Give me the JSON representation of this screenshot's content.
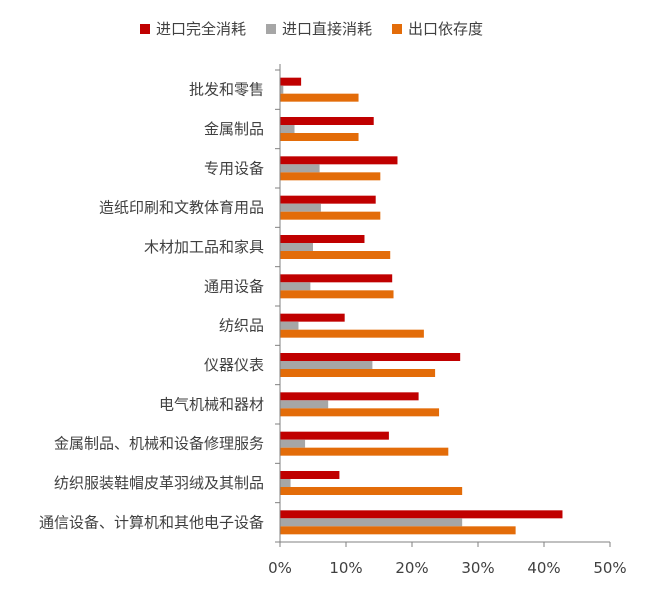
{
  "chart_data": {
    "type": "bar",
    "orientation": "horizontal",
    "categories": [
      "批发和零售",
      "金属制品",
      "专用设备",
      "造纸印刷和文教体育用品",
      "木材加工品和家具",
      "通用设备",
      "纺织品",
      "仪器仪表",
      "电气机械和器材",
      "金属制品、机械和设备修理服务",
      "纺织服装鞋帽皮革羽绒及其制品",
      "通信设备、计算机和其他电子设备"
    ],
    "series": [
      {
        "name": "进口完全消耗",
        "color": "#C00000",
        "values": [
          3.2,
          14.2,
          17.8,
          14.5,
          12.8,
          17.0,
          9.8,
          27.3,
          21.0,
          16.5,
          9.0,
          42.8
        ]
      },
      {
        "name": "进口直接消耗",
        "color": "#A6A6A6",
        "values": [
          0.5,
          2.2,
          6.0,
          6.2,
          5.0,
          4.6,
          2.8,
          14.0,
          7.3,
          3.8,
          1.6,
          27.6
        ]
      },
      {
        "name": "出口依存度",
        "color": "#E36C09",
        "values": [
          11.9,
          11.9,
          15.2,
          15.2,
          16.7,
          17.2,
          21.8,
          23.5,
          24.1,
          25.5,
          27.6,
          35.7
        ]
      }
    ],
    "xlim": [
      0,
      50
    ],
    "xticks": [
      "0%",
      "10%",
      "20%",
      "30%",
      "40%",
      "50%"
    ],
    "legend_position": "top",
    "grid": false
  }
}
